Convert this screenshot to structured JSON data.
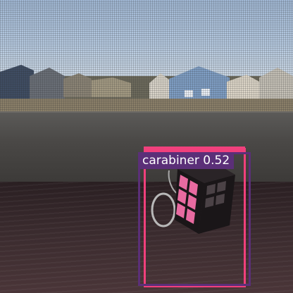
{
  "detections": [
    {
      "label": "carabiner 0.52",
      "color": "#5b2f78"
    },
    {
      "label": "",
      "color": "#f0407c"
    }
  ],
  "colors": {
    "cube_pink": "#e86aa0",
    "cube_black": "#1a1618"
  }
}
